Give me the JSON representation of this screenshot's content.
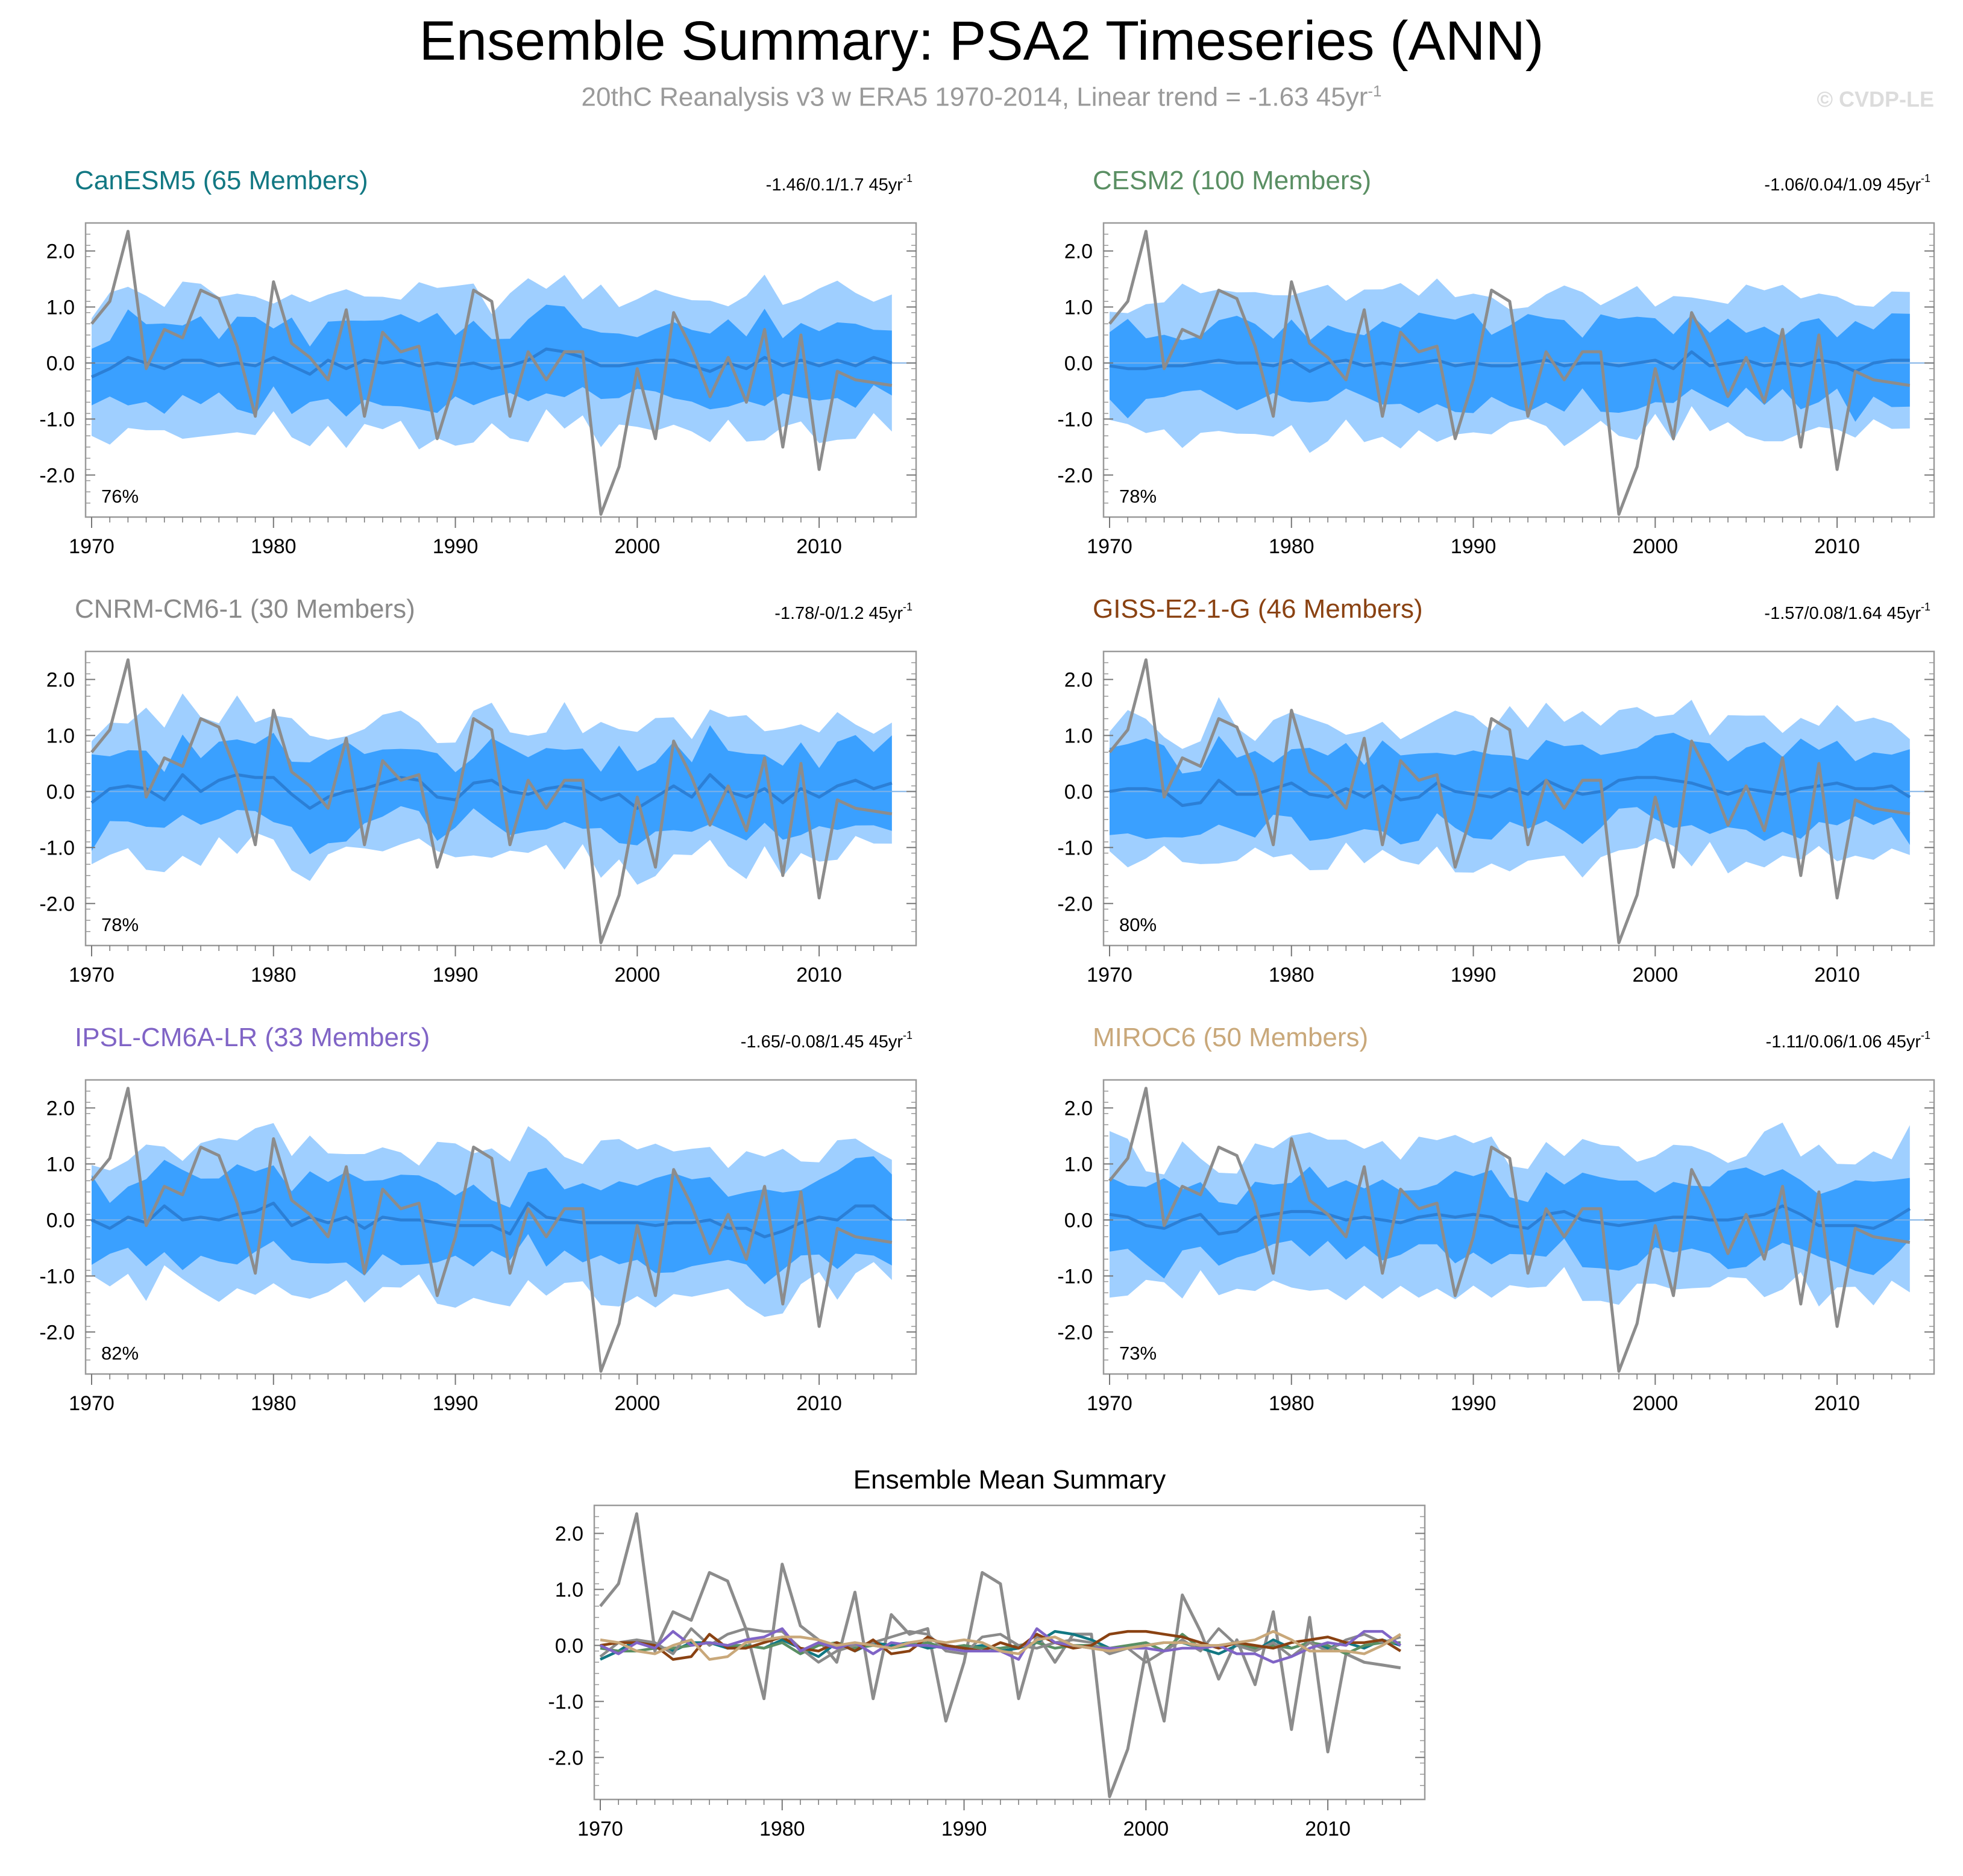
{
  "header": {
    "title": "Ensemble Summary: PSA2 Timeseries (ANN)",
    "subtitle_prefix": "20thC Reanalysis v3 w ERA5 1970-2014, Linear trend = -1.63 45yr",
    "subtitle_sup": "-1",
    "credit": "© CVDP-LE"
  },
  "colors": {
    "outer_band": "#9fcfff",
    "inner_band": "#3aa0ff",
    "ensemble_mean": "#2b7fd6",
    "observations": "#8c8c8c"
  },
  "chart_data": {
    "type": "line",
    "x": [
      1970,
      1971,
      1972,
      1973,
      1974,
      1975,
      1976,
      1977,
      1978,
      1979,
      1980,
      1981,
      1982,
      1983,
      1984,
      1985,
      1986,
      1987,
      1988,
      1989,
      1990,
      1991,
      1992,
      1993,
      1994,
      1995,
      1996,
      1997,
      1998,
      1999,
      2000,
      2001,
      2002,
      2003,
      2004,
      2005,
      2006,
      2007,
      2008,
      2009,
      2010,
      2011,
      2012,
      2013,
      2014
    ],
    "xticks": [
      1970,
      1980,
      1990,
      2000,
      2010
    ],
    "yticks": [
      2.0,
      1.0,
      0.0,
      -1.0,
      -2.0
    ],
    "ytick_labels": [
      "2.0",
      "1.0",
      "0.0",
      "-1.0",
      "-2.0"
    ],
    "ylim": [
      -2.75,
      2.5
    ],
    "observed": [
      0.7,
      1.1,
      2.35,
      -0.1,
      0.6,
      0.45,
      1.3,
      1.15,
      0.3,
      -0.95,
      1.45,
      0.35,
      0.1,
      -0.3,
      0.95,
      -0.95,
      0.55,
      0.2,
      0.3,
      -1.35,
      -0.3,
      1.3,
      1.1,
      -0.95,
      0.2,
      -0.3,
      0.2,
      0.2,
      -2.7,
      -1.85,
      -0.1,
      -1.35,
      0.9,
      0.25,
      -0.6,
      0.1,
      -0.7,
      0.6,
      -1.5,
      0.5,
      -1.9,
      -0.15,
      -0.3,
      -0.35,
      -0.4
    ],
    "panels": [
      {
        "model": "CanESM5 (65 Members)",
        "color": "#127883",
        "trend_label": "-1.46/0.1/1.7 45yr",
        "trend_sup": "-1",
        "pct": "76%",
        "mean": [
          -0.25,
          -0.1,
          0.1,
          0.0,
          -0.1,
          0.05,
          0.05,
          -0.05,
          0.0,
          -0.05,
          0.1,
          -0.05,
          -0.2,
          0.05,
          -0.1,
          0.05,
          0.0,
          0.05,
          -0.05,
          0.0,
          -0.05,
          0.0,
          -0.1,
          -0.05,
          0.05,
          0.25,
          0.2,
          0.1,
          -0.05,
          -0.05,
          0.0,
          0.05,
          0.05,
          -0.05,
          -0.15,
          0.0,
          -0.1,
          0.1,
          -0.05,
          0.05,
          -0.05,
          0.05,
          -0.05,
          0.1,
          0.0
        ]
      },
      {
        "model": "CESM2 (100 Members)",
        "color": "#5a8f63",
        "trend_label": "-1.06/0.04/1.09 45yr",
        "trend_sup": "-1",
        "pct": "78%",
        "mean": [
          -0.05,
          -0.1,
          -0.1,
          -0.05,
          -0.05,
          0.0,
          0.05,
          0.0,
          0.0,
          -0.05,
          0.05,
          -0.15,
          0.0,
          0.05,
          -0.05,
          0.0,
          -0.05,
          0.0,
          0.05,
          -0.05,
          0.0,
          -0.05,
          -0.05,
          0.0,
          0.05,
          -0.05,
          0.0,
          0.0,
          -0.05,
          0.0,
          0.05,
          -0.1,
          0.2,
          -0.05,
          0.0,
          0.05,
          -0.05,
          0.0,
          -0.05,
          0.05,
          0.0,
          -0.15,
          0.0,
          0.05,
          0.05
        ]
      },
      {
        "model": "CNRM-CM6-1 (30 Members)",
        "color": "#8a8a8a",
        "trend_label": "-1.78/-0/1.2 45yr",
        "trend_sup": "-1",
        "pct": "78%",
        "mean": [
          -0.2,
          0.05,
          0.1,
          0.05,
          -0.15,
          0.3,
          0.0,
          0.2,
          0.3,
          0.25,
          0.25,
          -0.05,
          -0.3,
          -0.1,
          0.0,
          0.05,
          0.15,
          0.25,
          0.2,
          -0.1,
          -0.15,
          0.15,
          0.2,
          0.0,
          -0.05,
          0.05,
          0.1,
          0.05,
          -0.15,
          -0.05,
          -0.3,
          -0.1,
          0.1,
          -0.1,
          0.3,
          0.0,
          -0.1,
          0.05,
          -0.2,
          0.05,
          -0.1,
          0.1,
          0.2,
          0.05,
          0.15
        ]
      },
      {
        "model": "GISS-E2-1-G (46 Members)",
        "color": "#8a4212",
        "trend_label": "-1.57/0.08/1.64 45yr",
        "trend_sup": "-1",
        "pct": "80%",
        "mean": [
          0.0,
          0.05,
          0.05,
          0.0,
          -0.25,
          -0.2,
          0.2,
          -0.05,
          -0.05,
          0.05,
          0.15,
          -0.05,
          -0.1,
          0.05,
          -0.1,
          0.1,
          -0.15,
          -0.1,
          0.15,
          0.0,
          -0.05,
          -0.1,
          0.05,
          -0.05,
          0.2,
          0.05,
          -0.05,
          0.0,
          0.2,
          0.25,
          0.25,
          0.2,
          0.15,
          0.05,
          -0.05,
          0.05,
          0.0,
          -0.05,
          0.05,
          0.1,
          0.15,
          0.05,
          0.05,
          0.1,
          -0.1
        ]
      },
      {
        "model": "IPSL-CM6A-LR (33 Members)",
        "color": "#8064c6",
        "trend_label": "-1.65/-0.08/1.45 45yr",
        "trend_sup": "-1",
        "pct": "82%",
        "mean": [
          0.0,
          -0.15,
          0.05,
          -0.05,
          0.25,
          0.0,
          0.05,
          0.0,
          0.1,
          0.15,
          0.3,
          -0.1,
          0.05,
          -0.05,
          0.05,
          -0.15,
          0.05,
          0.0,
          0.0,
          -0.05,
          -0.1,
          -0.1,
          -0.1,
          -0.25,
          0.3,
          0.05,
          0.0,
          -0.05,
          -0.05,
          -0.05,
          -0.05,
          -0.1,
          -0.05,
          -0.05,
          0.0,
          -0.15,
          -0.15,
          -0.3,
          -0.2,
          -0.05,
          0.05,
          0.0,
          0.25,
          0.25,
          0.0
        ]
      },
      {
        "model": "MIROC6 (50 Members)",
        "color": "#c9a87a",
        "trend_label": "-1.11/0.06/1.06 45yr",
        "trend_sup": "-1",
        "pct": "73%",
        "mean": [
          0.1,
          0.05,
          -0.1,
          -0.15,
          0.0,
          0.1,
          -0.25,
          -0.2,
          0.05,
          0.1,
          0.15,
          0.15,
          0.1,
          0.0,
          0.05,
          0.0,
          -0.05,
          0.05,
          0.1,
          0.05,
          0.1,
          0.05,
          -0.1,
          -0.15,
          0.1,
          0.15,
          0.0,
          -0.05,
          -0.1,
          -0.05,
          0.0,
          0.05,
          0.05,
          0.0,
          0.0,
          0.05,
          0.1,
          0.25,
          0.1,
          -0.1,
          -0.1,
          -0.1,
          -0.15,
          0.0,
          0.2
        ]
      }
    ],
    "ensemble_summary_title": "Ensemble Mean Summary"
  }
}
